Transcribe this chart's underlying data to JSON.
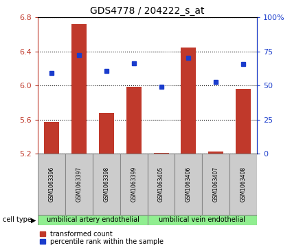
{
  "title": "GDS4778 / 204222_s_at",
  "samples": [
    "GSM1063396",
    "GSM1063397",
    "GSM1063398",
    "GSM1063399",
    "GSM1063405",
    "GSM1063406",
    "GSM1063407",
    "GSM1063408"
  ],
  "bar_values": [
    5.57,
    6.72,
    5.68,
    5.99,
    5.21,
    6.45,
    5.23,
    5.96
  ],
  "bar_bottom": 5.2,
  "dot_values": [
    6.15,
    6.36,
    6.17,
    6.26,
    5.99,
    6.33,
    6.04,
    6.25
  ],
  "bar_color": "#c0392b",
  "dot_color": "#1a3ccc",
  "ylim_left": [
    5.2,
    6.8
  ],
  "ylim_right": [
    0,
    100
  ],
  "yticks_left": [
    5.2,
    5.6,
    6.0,
    6.4,
    6.8
  ],
  "ytick_labels_left": [
    "5.2",
    "5.6",
    "6.0",
    "6.4",
    "6.8"
  ],
  "yticks_right": [
    0,
    25,
    50,
    75,
    100
  ],
  "ytick_labels_right": [
    "0",
    "25",
    "50",
    "75",
    "100%"
  ],
  "cell_type_groups": [
    {
      "label": "umbilical artery endothelial",
      "start": 0,
      "end": 3
    },
    {
      "label": "umbilical vein endothelial",
      "start": 4,
      "end": 7
    }
  ],
  "cell_type_label": "cell type",
  "legend_bar": "transformed count",
  "legend_dot": "percentile rank within the sample",
  "background_color": "#ffffff",
  "xlabel_area_color": "#d3d3d3",
  "cell_bar_color": "#90ee90",
  "sample_box_color": "#cccccc"
}
